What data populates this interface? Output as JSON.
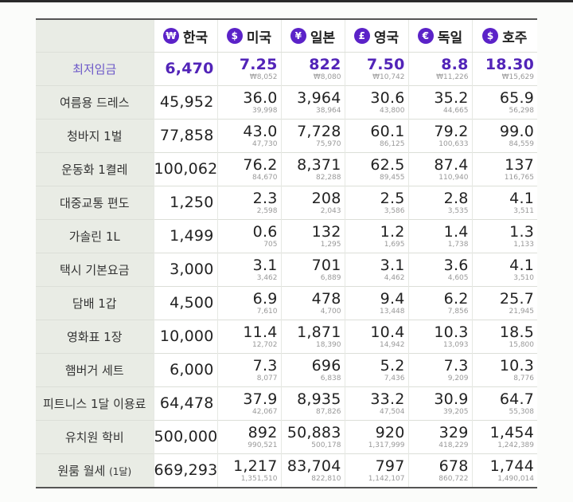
{
  "header": {
    "columns": [
      {
        "country": "한국",
        "currency_symbol": "₩",
        "icon": "won-icon"
      },
      {
        "country": "미국",
        "currency_symbol": "$",
        "icon": "dollar-icon"
      },
      {
        "country": "일본",
        "currency_symbol": "¥",
        "icon": "yen-icon"
      },
      {
        "country": "영국",
        "currency_symbol": "£",
        "icon": "pound-icon"
      },
      {
        "country": "독일",
        "currency_symbol": "€",
        "icon": "euro-icon"
      },
      {
        "country": "호주",
        "currency_symbol": "$",
        "icon": "dollar-icon"
      }
    ]
  },
  "colors": {
    "accent": "#5b22c8",
    "highlight_text": "#5224b8",
    "label_bg": "#e9ece5"
  },
  "rows": [
    {
      "item": "최저임금",
      "highlight": true,
      "krw": "6,470",
      "values": [
        {
          "main": "7.25",
          "sub": "₩8,052"
        },
        {
          "main": "822",
          "sub": "₩8,080"
        },
        {
          "main": "7.50",
          "sub": "₩10,742"
        },
        {
          "main": "8.8",
          "sub": "₩11,226"
        },
        {
          "main": "18.30",
          "sub": "₩15,629"
        }
      ]
    },
    {
      "item": "여름용 드레스",
      "krw": "45,952",
      "values": [
        {
          "main": "36.0",
          "sub": "39,998"
        },
        {
          "main": "3,964",
          "sub": "38,964"
        },
        {
          "main": "30.6",
          "sub": "43,800"
        },
        {
          "main": "35.2",
          "sub": "44,665"
        },
        {
          "main": "65.9",
          "sub": "56,298"
        }
      ]
    },
    {
      "item": "청바지 1벌",
      "krw": "77,858",
      "values": [
        {
          "main": "43.0",
          "sub": "47,730"
        },
        {
          "main": "7,728",
          "sub": "75,970"
        },
        {
          "main": "60.1",
          "sub": "86,125"
        },
        {
          "main": "79.2",
          "sub": "100,633"
        },
        {
          "main": "99.0",
          "sub": "84,559"
        }
      ]
    },
    {
      "item": "운동화 1켤레",
      "krw": "100,062",
      "values": [
        {
          "main": "76.2",
          "sub": "84,670"
        },
        {
          "main": "8,371",
          "sub": "82,288"
        },
        {
          "main": "62.5",
          "sub": "89,455"
        },
        {
          "main": "87.4",
          "sub": "110,940"
        },
        {
          "main": "137",
          "sub": "116,765"
        }
      ]
    },
    {
      "item": "대중교통 편도",
      "krw": "1,250",
      "values": [
        {
          "main": "2.3",
          "sub": "2,598"
        },
        {
          "main": "208",
          "sub": "2,043"
        },
        {
          "main": "2.5",
          "sub": "3,586"
        },
        {
          "main": "2.8",
          "sub": "3,535"
        },
        {
          "main": "4.1",
          "sub": "3,511"
        }
      ]
    },
    {
      "item": "가솔린 1L",
      "krw": "1,499",
      "values": [
        {
          "main": "0.6",
          "sub": "705"
        },
        {
          "main": "132",
          "sub": "1,295"
        },
        {
          "main": "1.2",
          "sub": "1,695"
        },
        {
          "main": "1.4",
          "sub": "1,738"
        },
        {
          "main": "1.3",
          "sub": "1,133"
        }
      ]
    },
    {
      "item": "택시 기본요금",
      "krw": "3,000",
      "values": [
        {
          "main": "3.1",
          "sub": "3,462"
        },
        {
          "main": "701",
          "sub": "6,889"
        },
        {
          "main": "3.1",
          "sub": "4,462"
        },
        {
          "main": "3.6",
          "sub": "4,605"
        },
        {
          "main": "4.1",
          "sub": "3,510"
        }
      ]
    },
    {
      "item": "담배 1갑",
      "krw": "4,500",
      "values": [
        {
          "main": "6.9",
          "sub": "7,610"
        },
        {
          "main": "478",
          "sub": "4,700"
        },
        {
          "main": "9.4",
          "sub": "13,448"
        },
        {
          "main": "6.2",
          "sub": "7,856"
        },
        {
          "main": "25.7",
          "sub": "21,945"
        }
      ]
    },
    {
      "item": "영화표 1장",
      "krw": "10,000",
      "values": [
        {
          "main": "11.4",
          "sub": "12,702"
        },
        {
          "main": "1,871",
          "sub": "18,390"
        },
        {
          "main": "10.4",
          "sub": "14,942"
        },
        {
          "main": "10.3",
          "sub": "13,093"
        },
        {
          "main": "18.5",
          "sub": "15,800"
        }
      ]
    },
    {
      "item": "햄버거 세트",
      "krw": "6,000",
      "values": [
        {
          "main": "7.3",
          "sub": "8,077"
        },
        {
          "main": "696",
          "sub": "6,838"
        },
        {
          "main": "5.2",
          "sub": "7,436"
        },
        {
          "main": "7.3",
          "sub": "9,209"
        },
        {
          "main": "10.3",
          "sub": "8,776"
        }
      ]
    },
    {
      "item": "피트니스 1달 이용료",
      "krw": "64,478",
      "values": [
        {
          "main": "37.9",
          "sub": "42,067"
        },
        {
          "main": "8,935",
          "sub": "87,826"
        },
        {
          "main": "33.2",
          "sub": "47,504"
        },
        {
          "main": "30.9",
          "sub": "39,205"
        },
        {
          "main": "64.7",
          "sub": "55,308"
        }
      ]
    },
    {
      "item": "유치원 학비",
      "krw": "500,000",
      "values": [
        {
          "main": "892",
          "sub": "990,521"
        },
        {
          "main": "50,883",
          "sub": "500,178"
        },
        {
          "main": "920",
          "sub": "1,317,999"
        },
        {
          "main": "329",
          "sub": "418,229"
        },
        {
          "main": "1,454",
          "sub": "1,242,389"
        }
      ]
    },
    {
      "item": "원룸 월세",
      "item_suffix": "(1달)",
      "krw": "669,293",
      "values": [
        {
          "main": "1,217",
          "sub": "1,351,510"
        },
        {
          "main": "83,704",
          "sub": "822,810"
        },
        {
          "main": "797",
          "sub": "1,142,107"
        },
        {
          "main": "678",
          "sub": "860,722"
        },
        {
          "main": "1,744",
          "sub": "1,490,014"
        }
      ]
    }
  ]
}
